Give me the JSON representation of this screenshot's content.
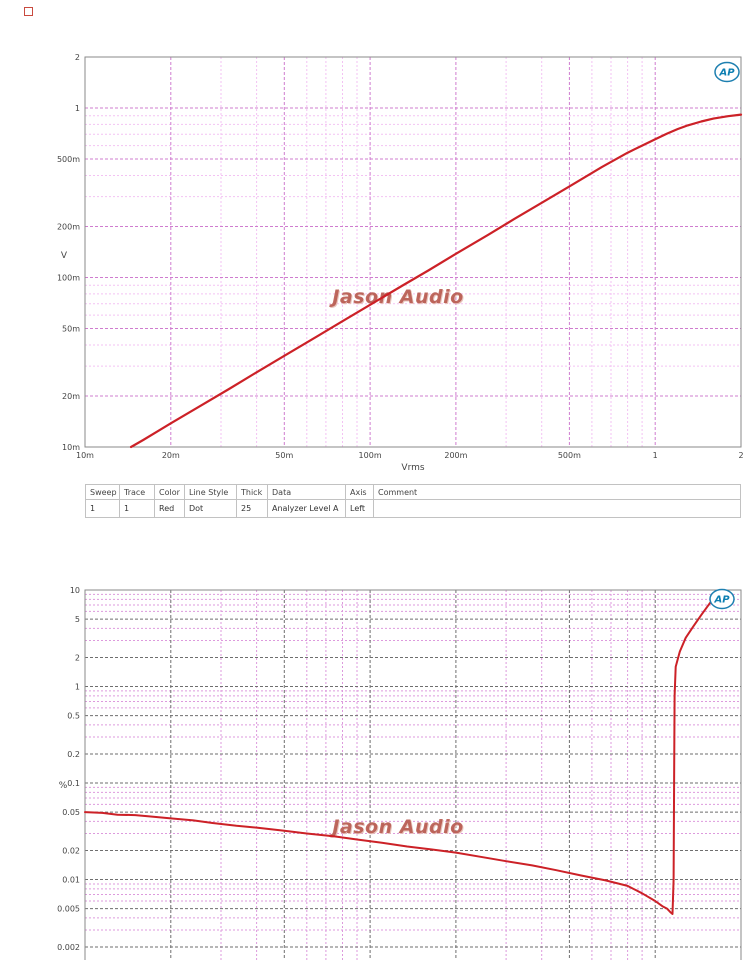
{
  "legend": {
    "headers": [
      "Sweep",
      "Trace",
      "Color",
      "Line Style",
      "Thick",
      "Data",
      "Axis",
      "Comment"
    ],
    "rows": [
      [
        "1",
        "1",
        "Red",
        "Dot",
        "25",
        "Analyzer Level A",
        "Left",
        ""
      ]
    ]
  },
  "chart_data": [
    {
      "type": "line",
      "title": "",
      "xlabel": "Vrms",
      "ylabel": "V",
      "x_scale": "log",
      "y_scale": "log",
      "xlim": [
        0.01,
        2
      ],
      "ylim": [
        0.01,
        2
      ],
      "x_ticks": [
        {
          "v": 0.01,
          "label": "10m"
        },
        {
          "v": 0.02,
          "label": "20m"
        },
        {
          "v": 0.05,
          "label": "50m"
        },
        {
          "v": 0.1,
          "label": "100m"
        },
        {
          "v": 0.2,
          "label": "200m"
        },
        {
          "v": 0.5,
          "label": "500m"
        },
        {
          "v": 1,
          "label": "1"
        },
        {
          "v": 2,
          "label": "2"
        }
      ],
      "y_ticks": [
        {
          "v": 2,
          "label": "2"
        },
        {
          "v": 1,
          "label": "1"
        },
        {
          "v": 0.5,
          "label": "500m"
        },
        {
          "v": 0.2,
          "label": "200m"
        },
        {
          "v": 0.1,
          "label": "100m"
        },
        {
          "v": 0.05,
          "label": "50m"
        },
        {
          "v": 0.02,
          "label": "20m"
        },
        {
          "v": 0.01,
          "label": "10m"
        }
      ],
      "grid": {
        "major_color": "#cf7ccf",
        "minor_color": "#f3c2f3",
        "grid_on": true
      },
      "legend_position": "none",
      "watermark": "Jason Audio",
      "logo": "AP",
      "series": [
        {
          "name": "Analyzer Level A",
          "color": "#cc2127",
          "width": 2.2,
          "points": [
            [
              0.0145,
              0.01
            ],
            [
              0.016,
              0.011
            ],
            [
              0.018,
              0.0124
            ],
            [
              0.02,
              0.0138
            ],
            [
              0.025,
              0.0172
            ],
            [
              0.032,
              0.022
            ],
            [
              0.04,
              0.0276
            ],
            [
              0.05,
              0.0345
            ],
            [
              0.065,
              0.0448
            ],
            [
              0.08,
              0.0552
            ],
            [
              0.1,
              0.069
            ],
            [
              0.13,
              0.0897
            ],
            [
              0.16,
              0.11
            ],
            [
              0.2,
              0.138
            ],
            [
              0.26,
              0.179
            ],
            [
              0.32,
              0.221
            ],
            [
              0.4,
              0.276
            ],
            [
              0.5,
              0.345
            ],
            [
              0.65,
              0.448
            ],
            [
              0.8,
              0.545
            ],
            [
              0.9,
              0.6
            ],
            [
              1.0,
              0.655
            ],
            [
              1.1,
              0.706
            ],
            [
              1.2,
              0.752
            ],
            [
              1.3,
              0.79
            ],
            [
              1.45,
              0.833
            ],
            [
              1.6,
              0.866
            ],
            [
              1.8,
              0.895
            ],
            [
              2.0,
              0.915
            ]
          ]
        }
      ]
    },
    {
      "type": "line",
      "title": "",
      "xlabel": "",
      "ylabel": "%",
      "x_scale": "log",
      "y_scale": "log",
      "xlim": [
        0.01,
        2
      ],
      "ylim": [
        0.002,
        10
      ],
      "x_ticks": [],
      "y_ticks": [
        {
          "v": 10,
          "label": "10"
        },
        {
          "v": 5,
          "label": "5"
        },
        {
          "v": 2,
          "label": "2"
        },
        {
          "v": 1,
          "label": "1"
        },
        {
          "v": 0.5,
          "label": "0.5"
        },
        {
          "v": 0.2,
          "label": "0.2"
        },
        {
          "v": 0.1,
          "label": "0.1"
        },
        {
          "v": 0.05,
          "label": "0.05"
        },
        {
          "v": 0.02,
          "label": "0.02"
        },
        {
          "v": 0.01,
          "label": "0.01"
        },
        {
          "v": 0.005,
          "label": "0.005"
        },
        {
          "v": 0.002,
          "label": "0.002"
        }
      ],
      "grid": {
        "major_color": "#6e6e6e",
        "minor_color": "#dd9add",
        "grid_on": true
      },
      "legend_position": "none",
      "watermark": "Jason Audio",
      "logo": "AP",
      "series": [
        {
          "name": "",
          "color": "#cc2127",
          "width": 2,
          "points": [
            [
              0.01,
              0.05
            ],
            [
              0.0115,
              0.049
            ],
            [
              0.013,
              0.047
            ],
            [
              0.015,
              0.0465
            ],
            [
              0.017,
              0.045
            ],
            [
              0.02,
              0.043
            ],
            [
              0.024,
              0.041
            ],
            [
              0.028,
              0.0385
            ],
            [
              0.034,
              0.036
            ],
            [
              0.04,
              0.0345
            ],
            [
              0.05,
              0.032
            ],
            [
              0.06,
              0.03
            ],
            [
              0.075,
              0.028
            ],
            [
              0.09,
              0.026
            ],
            [
              0.11,
              0.024
            ],
            [
              0.135,
              0.022
            ],
            [
              0.165,
              0.0205
            ],
            [
              0.2,
              0.019
            ],
            [
              0.25,
              0.017
            ],
            [
              0.3,
              0.0155
            ],
            [
              0.37,
              0.014
            ],
            [
              0.45,
              0.0125
            ],
            [
              0.55,
              0.011
            ],
            [
              0.67,
              0.0098
            ],
            [
              0.8,
              0.0086
            ],
            [
              0.9,
              0.0072
            ],
            [
              1.0,
              0.006
            ],
            [
              1.06,
              0.0053
            ],
            [
              1.1,
              0.005
            ],
            [
              1.13,
              0.0046
            ],
            [
              1.15,
              0.0044
            ],
            [
              1.16,
              0.01
            ],
            [
              1.165,
              0.1
            ],
            [
              1.17,
              0.8
            ],
            [
              1.18,
              1.6
            ],
            [
              1.22,
              2.3
            ],
            [
              1.28,
              3.2
            ],
            [
              1.36,
              4.2
            ],
            [
              1.45,
              5.5
            ],
            [
              1.55,
              7.2
            ],
            [
              1.65,
              9.0
            ],
            [
              1.7,
              10.0
            ]
          ]
        }
      ]
    }
  ]
}
